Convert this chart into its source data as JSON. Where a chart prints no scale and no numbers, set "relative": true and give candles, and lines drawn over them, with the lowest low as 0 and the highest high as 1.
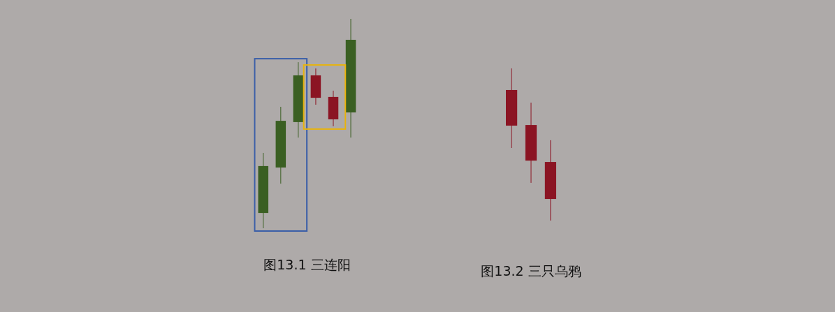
{
  "chart_data": [
    {
      "type": "candlestick",
      "title": "图13.1 三连阳",
      "relative": true,
      "categories": [
        null,
        null,
        null,
        null,
        null,
        null
      ],
      "ohlc": [
        [
          0.073,
          0.36,
          0,
          0.297
        ],
        [
          0.29,
          0.58,
          0.213,
          0.513
        ],
        [
          0.507,
          0.793,
          0.433,
          0.73
        ],
        [
          0.73,
          0.763,
          0.59,
          0.623
        ],
        [
          0.627,
          0.657,
          0.487,
          0.52
        ],
        [
          0.553,
          1,
          0.433,
          0.9
        ]
      ],
      "colors": [
        "#3a5f22",
        "#3a5f22",
        "#3a5f22",
        "#8b1423",
        "#8b1423",
        "#3a5f22"
      ]
    },
    {
      "type": "candlestick",
      "title": "图13.2 三只乌鸦",
      "relative": true,
      "categories": [
        null,
        null,
        null
      ],
      "ohlc": [
        [
          0.858,
          1,
          0.477,
          0.624
        ],
        [
          0.628,
          0.775,
          0.248,
          0.394
        ],
        [
          0.385,
          0.528,
          0,
          0.142
        ]
      ],
      "colors": [
        "#8b1423",
        "#8b1423",
        "#8b1423"
      ]
    }
  ]
}
